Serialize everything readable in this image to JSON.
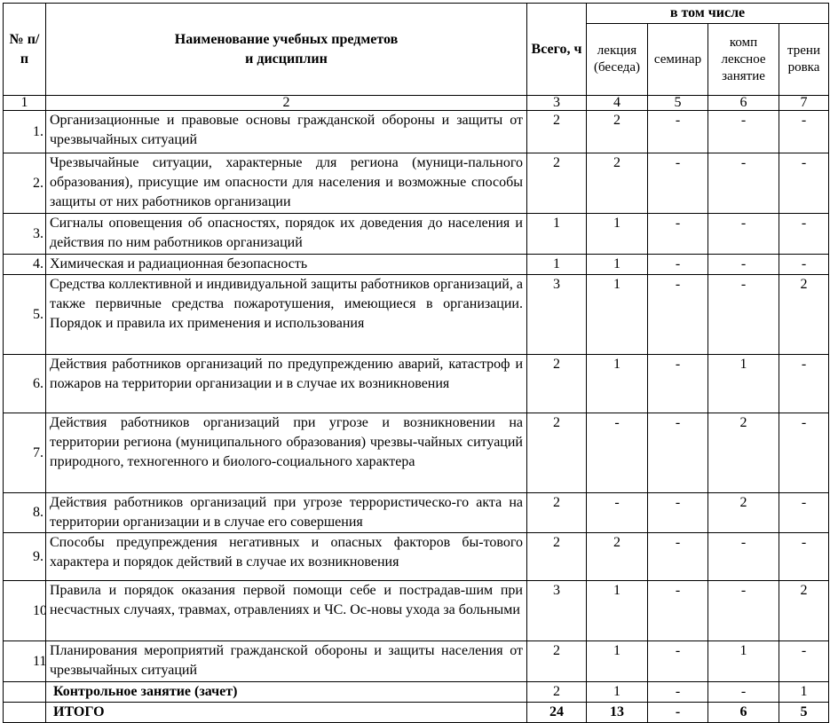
{
  "header": {
    "num": "№ п/п",
    "name_line1": "Наименование учебных предметов",
    "name_line2": "и дисциплин",
    "total": "Всего, ч",
    "including": "в том числе",
    "lecture": "лекция (беседа)",
    "seminar": "семинар",
    "complex": "комп лексное занятие",
    "training": "трени ровка"
  },
  "index_row": [
    "1",
    "2",
    "3",
    "4",
    "5",
    "6",
    "7"
  ],
  "rows": [
    {
      "num": "1.",
      "name": "Организационные и правовые основы гражданской обороны и защиты от чрезвычайных ситуаций",
      "total": "2",
      "lecture": "2",
      "seminar": "-",
      "complex": "-",
      "training": "-"
    },
    {
      "num": "2.",
      "name": "Чрезвычайные ситуации, характерные для региона (муници-пального образования), присущие им опасности для населения и возможные способы защиты от них работников организации",
      "total": "2",
      "lecture": "2",
      "seminar": "-",
      "complex": "-",
      "training": "-"
    },
    {
      "num": "3.",
      "name": "Сигналы оповещения об опасностях, порядок их доведения до населения и действия по ним работников организаций",
      "total": "1",
      "lecture": "1",
      "seminar": "-",
      "complex": "-",
      "training": "-"
    },
    {
      "num": "4.",
      "name": "Химическая и радиационная безопасность",
      "total": "1",
      "lecture": "1",
      "seminar": "-",
      "complex": "-",
      "training": "-"
    },
    {
      "num": "5.",
      "name": "Средства коллективной и индивидуальной защиты работников организаций, а также первичные средства пожаротушения, имеющиеся в организации. Порядок и правила их применения и использования",
      "total": "3",
      "lecture": "1",
      "seminar": "-",
      "complex": "-",
      "training": "2"
    },
    {
      "num": "6.",
      "name": "Действия работников организаций по предупреждению аварий, катастроф и пожаров на территории организации и в случае их возникновения",
      "total": "2",
      "lecture": "1",
      "seminar": "-",
      "complex": "1",
      "training": "-"
    },
    {
      "num": "7.",
      "name": "Действия работников организаций при угрозе и возникновении на территории региона (муниципального образования) чрезвы-чайных ситуаций природного, техногенного и биолого-социального характера",
      "total": "2",
      "lecture": "-",
      "seminar": "-",
      "complex": "2",
      "training": "-"
    },
    {
      "num": "8.",
      "name": "Действия работников организаций при угрозе террористическо-го акта на территории организации и в случае его совершения",
      "total": "2",
      "lecture": "-",
      "seminar": "-",
      "complex": "2",
      "training": "-"
    },
    {
      "num": "9.",
      "name": "Способы предупреждения негативных и опасных факторов бы-тового характера и порядок действий в случае их возникновения",
      "total": "2",
      "lecture": "2",
      "seminar": "-",
      "complex": "-",
      "training": "-"
    },
    {
      "num": "10.",
      "name": "Правила и порядок оказания первой помощи себе и пострадав-шим при несчастных случаях, травмах, отравлениях и ЧС. Ос-новы ухода за больными",
      "total": "3",
      "lecture": "1",
      "seminar": "-",
      "complex": "-",
      "training": "2"
    },
    {
      "num": "11.",
      "name": "Планирования мероприятий гражданской обороны и защиты населения от чрезвычайных ситуаций",
      "total": "2",
      "lecture": "1",
      "seminar": "-",
      "complex": "1",
      "training": "-"
    }
  ],
  "control": {
    "name": "Контрольное занятие (зачет)",
    "total": "2",
    "lecture": "1",
    "seminar": "-",
    "complex": "-",
    "training": "1"
  },
  "itogo": {
    "name": "ИТОГО",
    "total": "24",
    "lecture": "13",
    "seminar": "-",
    "complex": "6",
    "training": "5"
  }
}
